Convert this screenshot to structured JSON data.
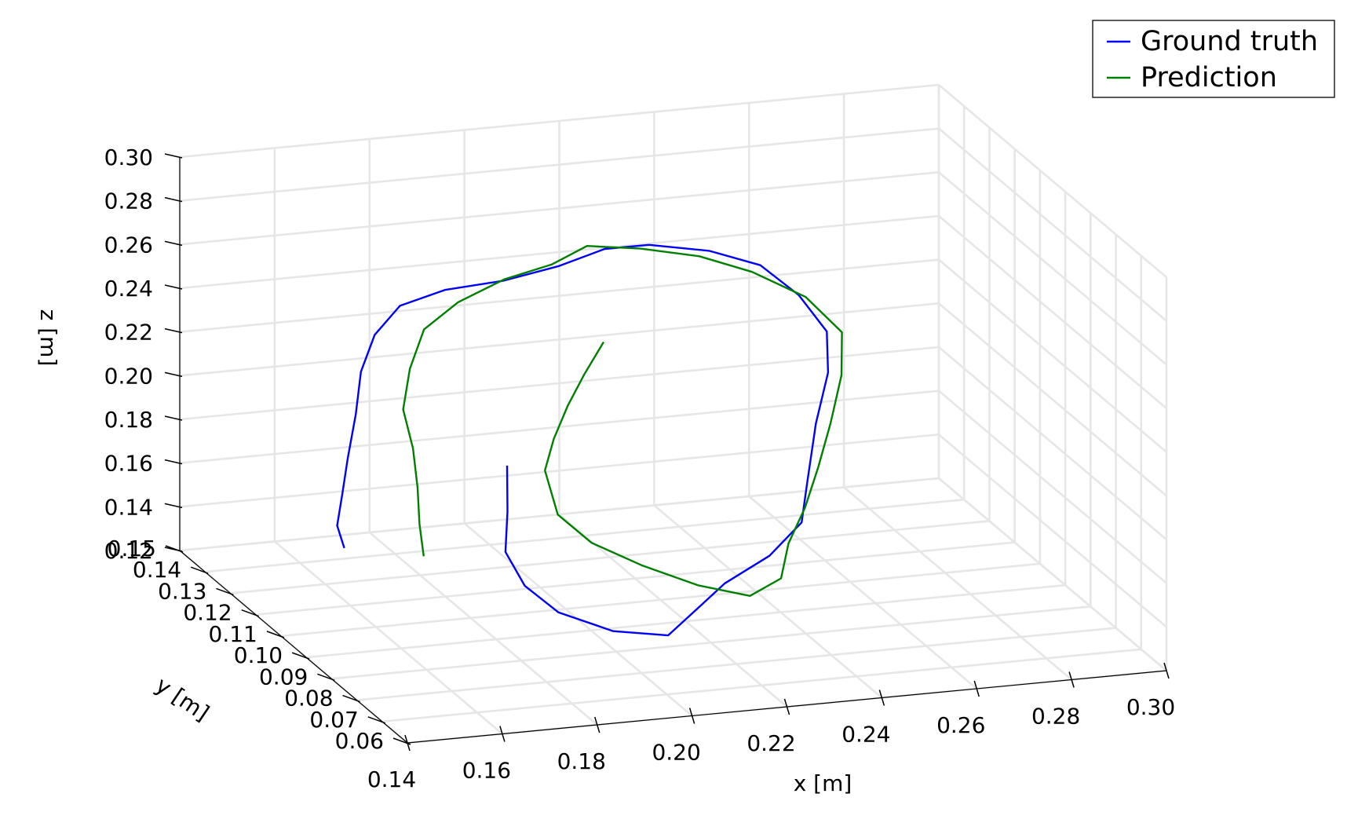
{
  "chart_data": {
    "type": "line",
    "projection": "3d",
    "grid": true,
    "legend_position": "top-right",
    "axes": {
      "x": {
        "label": "x [m]",
        "range": [
          0.14,
          0.3
        ],
        "ticks": [
          "0.14",
          "0.16",
          "0.18",
          "0.20",
          "0.22",
          "0.24",
          "0.26",
          "0.28",
          "0.30"
        ]
      },
      "y": {
        "label": "y [m]",
        "range": [
          0.06,
          0.15
        ],
        "ticks": [
          "0.06",
          "0.07",
          "0.08",
          "0.09",
          "0.10",
          "0.11",
          "0.12",
          "0.13",
          "0.14",
          "0.15"
        ]
      },
      "z": {
        "label": "z [m]",
        "range": [
          0.12,
          0.3
        ],
        "ticks": [
          "0.12",
          "0.14",
          "0.16",
          "0.18",
          "0.20",
          "0.22",
          "0.24",
          "0.26",
          "0.28",
          "0.30"
        ]
      }
    },
    "series": [
      {
        "name": "Ground truth",
        "color": "#0000ff",
        "points": [
          [
            0.185,
            0.105,
            0.195
          ],
          [
            0.184,
            0.104,
            0.175
          ],
          [
            0.183,
            0.103,
            0.157
          ],
          [
            0.186,
            0.1,
            0.143
          ],
          [
            0.191,
            0.095,
            0.134
          ],
          [
            0.2,
            0.09,
            0.128
          ],
          [
            0.21,
            0.088,
            0.126
          ],
          [
            0.217,
            0.092,
            0.132
          ],
          [
            0.226,
            0.097,
            0.139
          ],
          [
            0.238,
            0.101,
            0.146
          ],
          [
            0.247,
            0.104,
            0.157
          ],
          [
            0.25,
            0.107,
            0.172
          ],
          [
            0.253,
            0.11,
            0.195
          ],
          [
            0.256,
            0.112,
            0.215
          ],
          [
            0.256,
            0.113,
            0.232
          ],
          [
            0.251,
            0.114,
            0.248
          ],
          [
            0.243,
            0.113,
            0.264
          ],
          [
            0.232,
            0.112,
            0.274
          ],
          [
            0.219,
            0.112,
            0.28
          ],
          [
            0.209,
            0.112,
            0.281
          ],
          [
            0.199,
            0.112,
            0.276
          ],
          [
            0.188,
            0.113,
            0.271
          ],
          [
            0.178,
            0.116,
            0.266
          ],
          [
            0.17,
            0.118,
            0.258
          ],
          [
            0.165,
            0.119,
            0.244
          ],
          [
            0.162,
            0.12,
            0.226
          ],
          [
            0.161,
            0.121,
            0.205
          ],
          [
            0.16,
            0.122,
            0.184
          ],
          [
            0.16,
            0.123,
            0.167
          ],
          [
            0.161,
            0.126,
            0.15
          ],
          [
            0.164,
            0.129,
            0.137
          ]
        ]
      },
      {
        "name": "Prediction",
        "color": "#008000",
        "points": [
          [
            0.208,
            0.11,
            0.24
          ],
          [
            0.204,
            0.109,
            0.228
          ],
          [
            0.2,
            0.108,
            0.216
          ],
          [
            0.196,
            0.107,
            0.203
          ],
          [
            0.193,
            0.106,
            0.19
          ],
          [
            0.194,
            0.103,
            0.172
          ],
          [
            0.2,
            0.1,
            0.16
          ],
          [
            0.209,
            0.096,
            0.151
          ],
          [
            0.22,
            0.094,
            0.141
          ],
          [
            0.23,
            0.093,
            0.135
          ],
          [
            0.237,
            0.095,
            0.14
          ],
          [
            0.241,
            0.1,
            0.151
          ],
          [
            0.247,
            0.104,
            0.163
          ],
          [
            0.252,
            0.107,
            0.178
          ],
          [
            0.256,
            0.109,
            0.196
          ],
          [
            0.259,
            0.111,
            0.215
          ],
          [
            0.259,
            0.112,
            0.233
          ],
          [
            0.251,
            0.112,
            0.25
          ],
          [
            0.24,
            0.112,
            0.263
          ],
          [
            0.229,
            0.111,
            0.273
          ],
          [
            0.217,
            0.111,
            0.279
          ],
          [
            0.206,
            0.112,
            0.282
          ],
          [
            0.198,
            0.112,
            0.276
          ],
          [
            0.188,
            0.113,
            0.271
          ],
          [
            0.179,
            0.114,
            0.262
          ],
          [
            0.173,
            0.115,
            0.25
          ],
          [
            0.171,
            0.116,
            0.231
          ],
          [
            0.17,
            0.117,
            0.211
          ],
          [
            0.172,
            0.118,
            0.191
          ],
          [
            0.173,
            0.119,
            0.171
          ],
          [
            0.174,
            0.12,
            0.153
          ],
          [
            0.176,
            0.121,
            0.137
          ]
        ]
      }
    ]
  }
}
